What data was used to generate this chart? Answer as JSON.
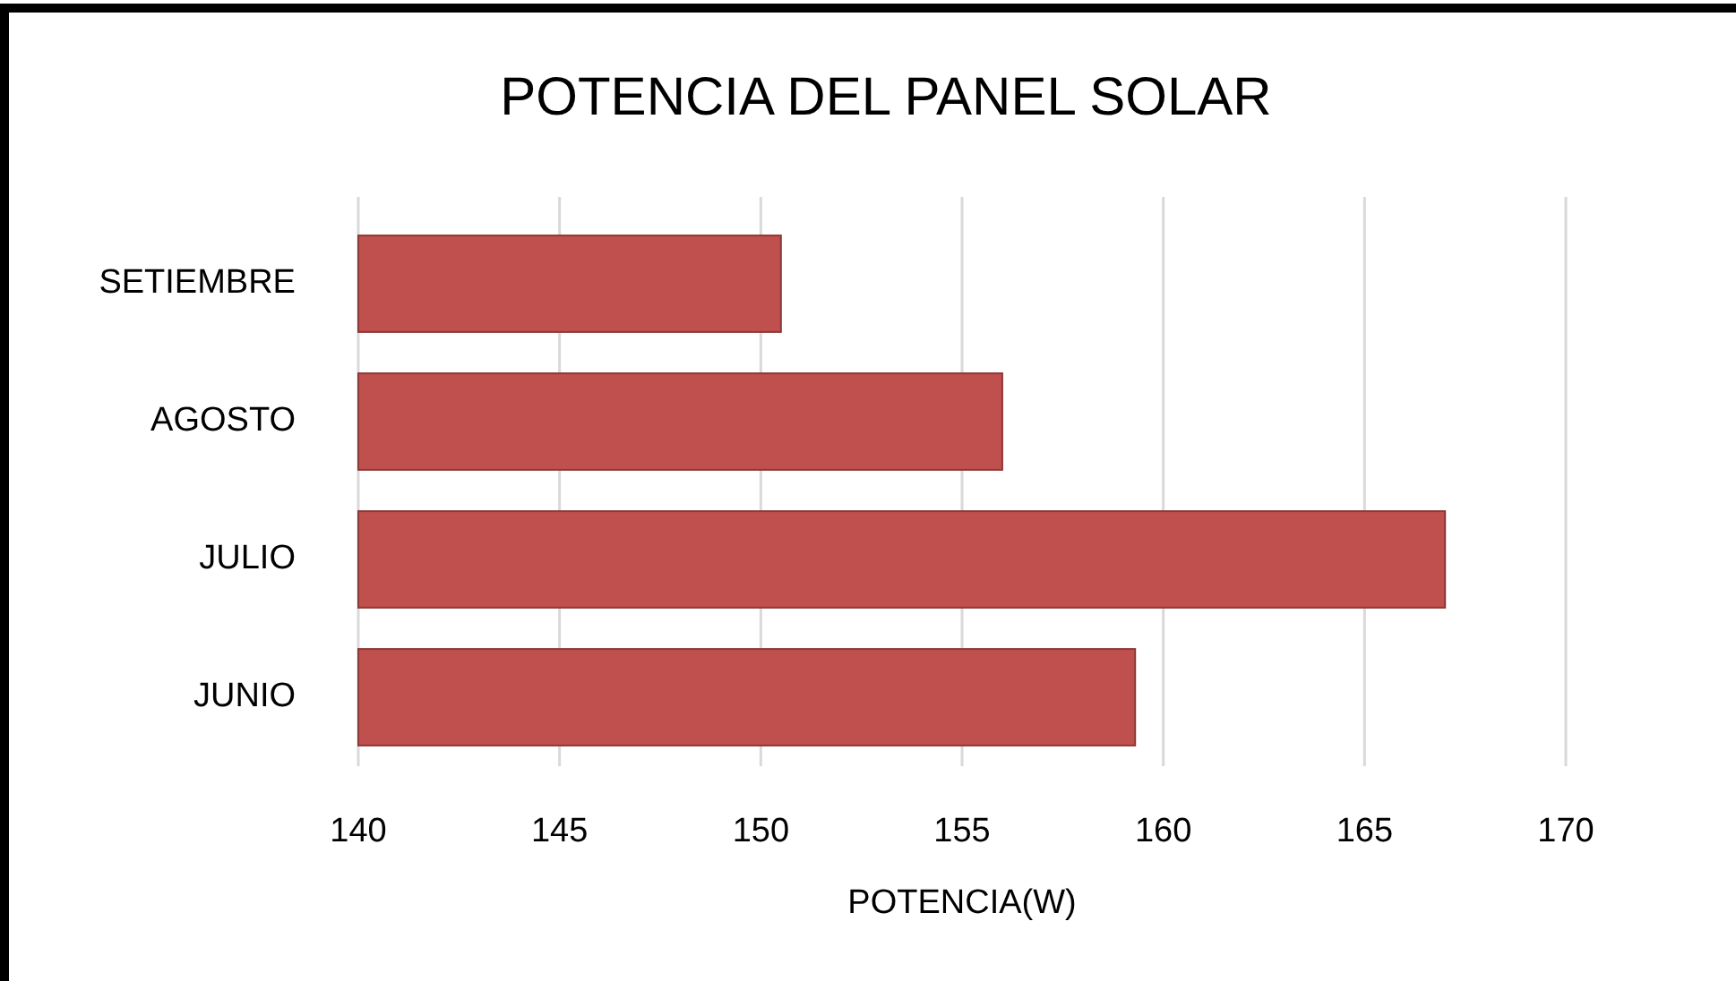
{
  "chart_data": {
    "type": "bar",
    "title": "POTENCIA DEL PANEL SOLAR",
    "xlabel": "POTENCIA(W)",
    "orientation": "horizontal",
    "categories": [
      "SETIEMBRE",
      "AGOSTO",
      "JULIO",
      "JUNIO"
    ],
    "values": [
      150.5,
      156,
      167,
      159.3
    ],
    "color": "#c0504d",
    "xlim": [
      140,
      170
    ],
    "xticks": [
      140,
      145,
      150,
      155,
      160,
      165,
      170
    ],
    "grid": "x"
  }
}
